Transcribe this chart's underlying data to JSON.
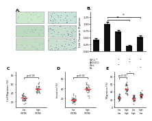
{
  "panel_B": {
    "bars": [
      0.42,
      1.0,
      0.72,
      0.18,
      0.52
    ],
    "errors": [
      0.04,
      0.08,
      0.06,
      0.03,
      0.05
    ],
    "ylabel": "Fold Change in Migration",
    "bar_color": "#111111",
    "row_labels": [
      "SDF-1",
      "AMD3100",
      "Wort.",
      "Ptx"
    ],
    "row_dots": [
      [
        "+",
        "-",
        "+",
        "+",
        "+"
      ],
      [
        "-",
        "-",
        "-",
        "+",
        "-"
      ],
      [
        "-",
        "-",
        "+",
        "-",
        "-"
      ],
      [
        "-",
        "-",
        "-",
        "-",
        "+"
      ]
    ]
  },
  "panel_C": {
    "xlabel1": "low\nCXCR4",
    "xlabel2": "high\nCXCR4",
    "ylabel": "Cell Migration (%)",
    "pval": "p<0.01",
    "title": "C",
    "g1_mean": 28,
    "g2_mean": 48,
    "g1_std": 6,
    "g2_std": 8
  },
  "panel_D": {
    "xlabel1": "low\nCXCR4",
    "xlabel2": "high\nCXCR4",
    "ylabel": "Invasion (%)",
    "pval": "p<0.01",
    "title": "D",
    "g1_mean": 18,
    "g2_mean": 38,
    "g1_std": 5,
    "g2_std": 7
  },
  "panel_E": {
    "xlabels": [
      "low\nlow",
      "high\nhigh",
      "low\nhigh",
      "high\nlow"
    ],
    "ylabel": "Migration (%)",
    "pval": "p<0.01",
    "title": "E",
    "means": [
      25,
      50,
      22,
      30
    ],
    "stds": [
      5,
      8,
      5,
      6
    ]
  },
  "background_color": "#ffffff",
  "dot_color": "#222222",
  "mean_line_color": "#ff3333",
  "dot_alpha": 0.55,
  "dot_size": 1.5
}
